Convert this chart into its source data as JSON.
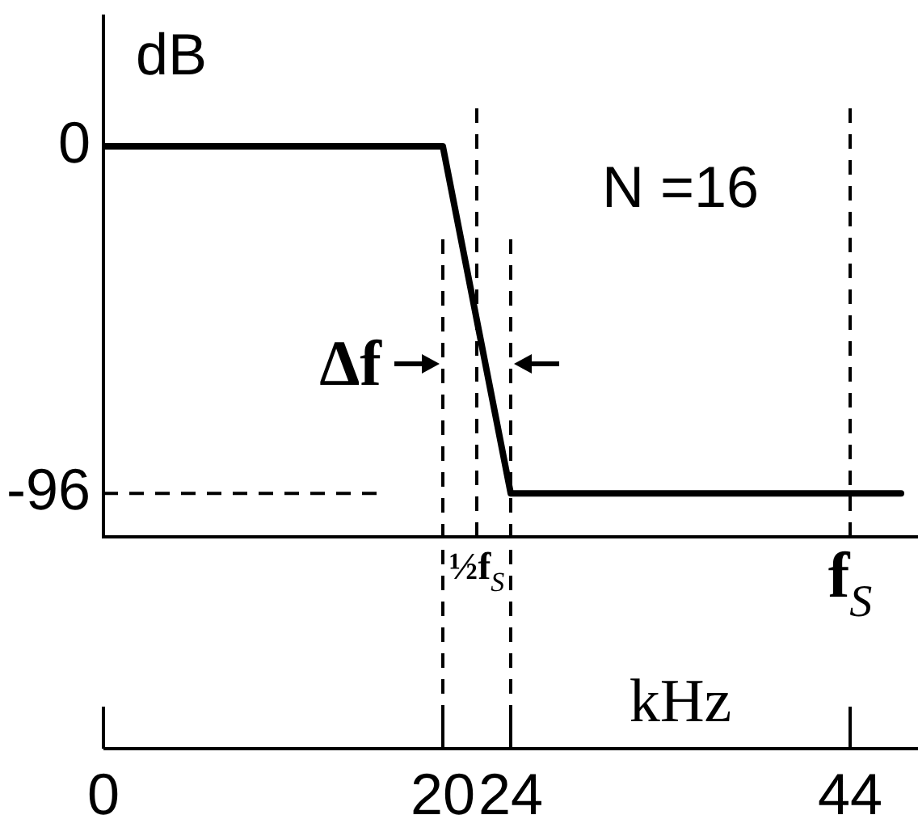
{
  "chart_data": {
    "type": "line",
    "xlabel": "kHz",
    "ylabel": "dB",
    "annotations": [
      "N =16",
      "Δf"
    ],
    "x": [
      0,
      20,
      24,
      47
    ],
    "series": [
      {
        "color": "#000000",
        "values": [
          0,
          0,
          -96,
          -96
        ]
      }
    ],
    "xlim": [
      0,
      48
    ],
    "xticks": [
      0,
      20,
      24,
      44
    ],
    "ylim": [
      -108,
      36
    ],
    "yticks": [
      -96,
      0
    ],
    "ref_lines": [
      {
        "axis": "x",
        "value": 20,
        "color": "#000000",
        "line_style": "dashed"
      },
      {
        "axis": "x",
        "value": 22,
        "label": "½f$_{S}$",
        "color": "#000000",
        "line_style": "dashed"
      },
      {
        "axis": "x",
        "value": 24,
        "color": "#000000",
        "line_style": "dashed"
      },
      {
        "axis": "x",
        "value": 44,
        "label": "f$_{S}$",
        "color": "#000000",
        "line_style": "dashed"
      },
      {
        "axis": "y",
        "value": -96,
        "color": "#000000",
        "line_style": "dashed"
      }
    ]
  }
}
